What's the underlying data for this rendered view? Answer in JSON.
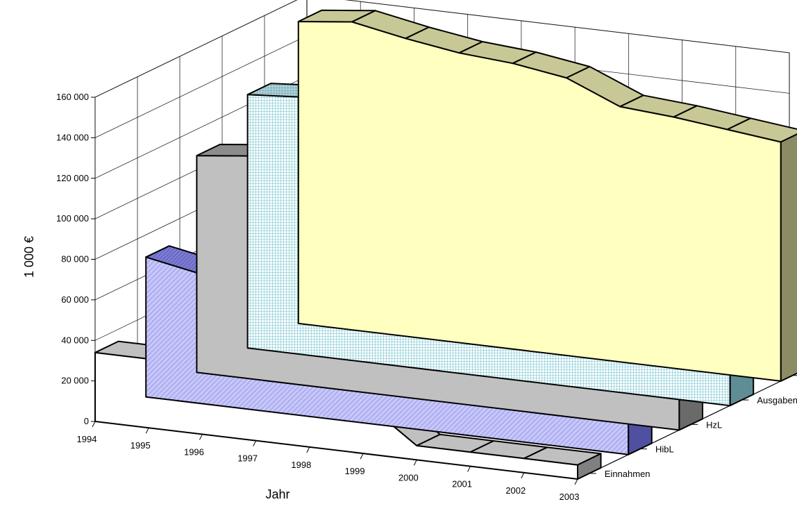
{
  "chart_data": {
    "type": "area",
    "variant": "3d-ribbon",
    "ylabel": "1 000 €",
    "xlabel": "Jahr",
    "categories": [
      "1994",
      "1995",
      "1996",
      "1997",
      "1998",
      "1999",
      "2000",
      "2001",
      "2002",
      "2003"
    ],
    "y_ticks": [
      "0",
      "20 000",
      "40 000",
      "60 000",
      "80 000",
      "100 000",
      "120 000",
      "140 000",
      "160 000"
    ],
    "ylim": [
      0,
      160000
    ],
    "grid": true,
    "series": [
      {
        "name": "Ausgaben brutto",
        "color": "#ffffc0",
        "top_color": "#c8c896",
        "side_color": "#8c8c64",
        "pattern": "none",
        "values": [
          149000,
          152000,
          147000,
          143000,
          141000,
          137000,
          126000,
          124000,
          121000,
          118000
        ]
      },
      {
        "name": "Ausgaben netto",
        "color": "#d4f0f4",
        "top_color": "#8fb8c2",
        "side_color": "#5f8d96",
        "pattern": "grid",
        "values": [
          125000,
          127000,
          120000,
          123000,
          123000,
          116000,
          114000,
          112000,
          110000,
          108000
        ]
      },
      {
        "name": "HzL",
        "color": "#c0c0c0",
        "top_color": "#8c8c8c",
        "side_color": "#6a6a6a",
        "pattern": "none",
        "values": [
          107000,
          110000,
          110000,
          114000,
          111000,
          103000,
          88000,
          88000,
          91000,
          95000
        ]
      },
      {
        "name": "HibL",
        "color": "#a8a8f0",
        "top_color": "#6c6cc8",
        "side_color": "#5050a0",
        "pattern": "diag",
        "values": [
          69000,
          64000,
          53000,
          39000,
          40000,
          37000,
          34000,
          31000,
          27000,
          26000
        ]
      },
      {
        "name": "Einnahmen",
        "color": "#ffffff",
        "top_color": "#c0c0c0",
        "side_color": "#808080",
        "pattern": "none",
        "values": [
          34000,
          34000,
          34000,
          26000,
          20000,
          26000,
          7000,
          7000,
          7000,
          7000
        ]
      }
    ]
  }
}
